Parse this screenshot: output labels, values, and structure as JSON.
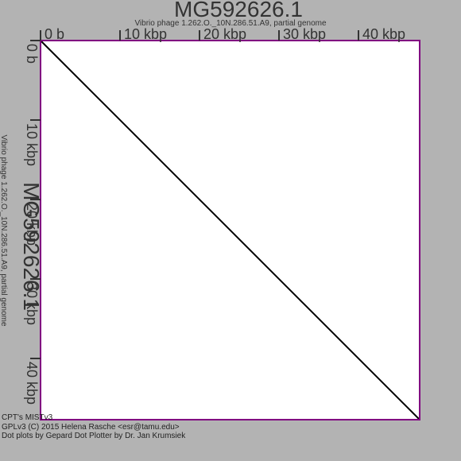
{
  "colors": {
    "background": "#b3b3b3",
    "plot_background": "#ffffff",
    "frame": "#800080",
    "line": "#000000",
    "text": "#333333"
  },
  "chart_data": {
    "type": "line",
    "title": "MG592626.1",
    "subtitle": "Vibrio phage 1.262.O._10N.286.51.A9, partial genome",
    "x_axis": {
      "title": "MG592626.1",
      "subtitle": "Vibrio phage 1.262.O._10N.286.51.A9, partial genome",
      "ticks": [
        0,
        10000,
        20000,
        30000,
        40000
      ],
      "tick_labels": [
        "0 b",
        "10 kbp",
        "20 kbp",
        "30 kbp",
        "40 kbp"
      ],
      "range": [
        0,
        47700
      ],
      "position": "top"
    },
    "y_axis": {
      "title": "MG592626.1",
      "subtitle": "Vibrio phage 1.262.O._10N.286.51.A9, partial genome",
      "ticks": [
        0,
        10000,
        20000,
        30000,
        40000
      ],
      "tick_labels": [
        "0 b",
        "10 kbp",
        "20 kbp",
        "30 kbp",
        "40 kbp"
      ],
      "range": [
        0,
        47700
      ],
      "position": "left",
      "direction": "top-to-bottom"
    },
    "series": [
      {
        "x": [
          0,
          47700
        ],
        "y": [
          0,
          47700
        ]
      }
    ],
    "grid": false
  },
  "credits": [
    "CPT's MISTv3",
    "GPLv3 (C) 2015 Helena Rasche <esr@tamu.edu>",
    "Dot plots by Gepard Dot Plotter by Dr. Jan Krumsiek"
  ]
}
